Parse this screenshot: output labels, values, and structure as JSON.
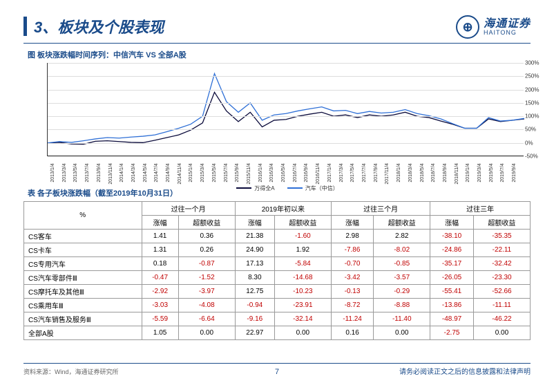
{
  "title": "3、板块及个股表现",
  "logo_cn": "海通证券",
  "logo_en": "HAITONG",
  "chart_title": "图 板块涨跌幅时间序列：中信汽车 VS 全部A股",
  "table_title": "表 各子板块涨跌幅（截至2019年10月31日）",
  "y_ticks": [
    "-50%",
    "0%",
    "50%",
    "100%",
    "150%",
    "200%",
    "250%",
    "300%"
  ],
  "x_ticks": [
    "2013/1/4",
    "2013/3/4",
    "2013/5/4",
    "2013/7/4",
    "2013/9/4",
    "2013/11/4",
    "2014/1/4",
    "2014/3/4",
    "2014/5/4",
    "2014/7/4",
    "2014/9/4",
    "2014/11/4",
    "2015/1/4",
    "2015/3/4",
    "2015/5/4",
    "2015/7/4",
    "2015/9/4",
    "2015/11/4",
    "2016/1/4",
    "2016/3/4",
    "2016/5/4",
    "2016/7/4",
    "2016/9/4",
    "2016/11/4",
    "2017/1/4",
    "2017/3/4",
    "2017/5/4",
    "2017/7/4",
    "2017/9/4",
    "2017/11/4",
    "2018/1/4",
    "2018/3/4",
    "2018/5/4",
    "2018/7/4",
    "2018/9/4",
    "2018/11/4",
    "2019/1/4",
    "2019/3/4",
    "2019/5/4",
    "2019/7/4",
    "2019/9/4"
  ],
  "legend": [
    "万得全A",
    "汽车（中信）"
  ],
  "series_colors": [
    "#0a0a3a",
    "#2e6fd6"
  ],
  "series1": [
    0,
    2,
    -4,
    -5,
    6,
    8,
    5,
    2,
    1,
    10,
    20,
    30,
    48,
    75,
    190,
    120,
    80,
    115,
    60,
    85,
    88,
    100,
    108,
    115,
    100,
    105,
    95,
    105,
    100,
    105,
    115,
    100,
    95,
    82,
    70,
    55,
    55,
    90,
    80,
    85,
    90
  ],
  "series2": [
    0,
    5,
    2,
    8,
    15,
    20,
    18,
    22,
    25,
    30,
    42,
    55,
    70,
    100,
    260,
    155,
    115,
    150,
    85,
    105,
    110,
    120,
    128,
    135,
    120,
    122,
    110,
    118,
    112,
    115,
    125,
    110,
    102,
    90,
    72,
    55,
    55,
    95,
    82,
    85,
    92
  ],
  "headers_group": [
    "过往一个月",
    "2019年初以来",
    "过往三个月",
    "过往三年"
  ],
  "headers_sub": [
    "涨幅",
    "超额收益"
  ],
  "row_header": "%",
  "rows": [
    {
      "name": "CS客车",
      "v": [
        1.41,
        0.36,
        21.38,
        -1.6,
        2.98,
        2.82,
        -38.1,
        -35.35
      ]
    },
    {
      "name": "CS卡车",
      "v": [
        1.31,
        0.26,
        24.9,
        1.92,
        -7.86,
        -8.02,
        -24.86,
        -22.11
      ]
    },
    {
      "name": "CS专用汽车",
      "v": [
        0.18,
        -0.87,
        17.13,
        -5.84,
        -0.7,
        -0.85,
        -35.17,
        -32.42
      ]
    },
    {
      "name": "CS汽车零部件Ⅲ",
      "v": [
        -0.47,
        -1.52,
        8.3,
        -14.68,
        -3.42,
        -3.57,
        -26.05,
        -23.3
      ]
    },
    {
      "name": "CS摩托车及其他Ⅲ",
      "v": [
        -2.92,
        -3.97,
        12.75,
        -10.23,
        -0.13,
        -0.29,
        -55.41,
        -52.66
      ]
    },
    {
      "name": "CS乘用车Ⅲ",
      "v": [
        -3.03,
        -4.08,
        -0.94,
        -23.91,
        -8.72,
        -8.88,
        -13.86,
        -11.11
      ]
    },
    {
      "name": "CS汽车销售及服务Ⅲ",
      "v": [
        -5.59,
        -6.64,
        -9.16,
        -32.14,
        -11.24,
        -11.4,
        -48.97,
        -46.22
      ]
    },
    {
      "name": "全部A股",
      "v": [
        1.05,
        0.0,
        22.97,
        0.0,
        0.16,
        0.0,
        -2.75,
        0.0
      ]
    }
  ],
  "source": "资料来源：Wind，海通证券研究所",
  "pagenum": "7",
  "disclaimer": "请务必阅读正文之后的信息披露和法律声明"
}
